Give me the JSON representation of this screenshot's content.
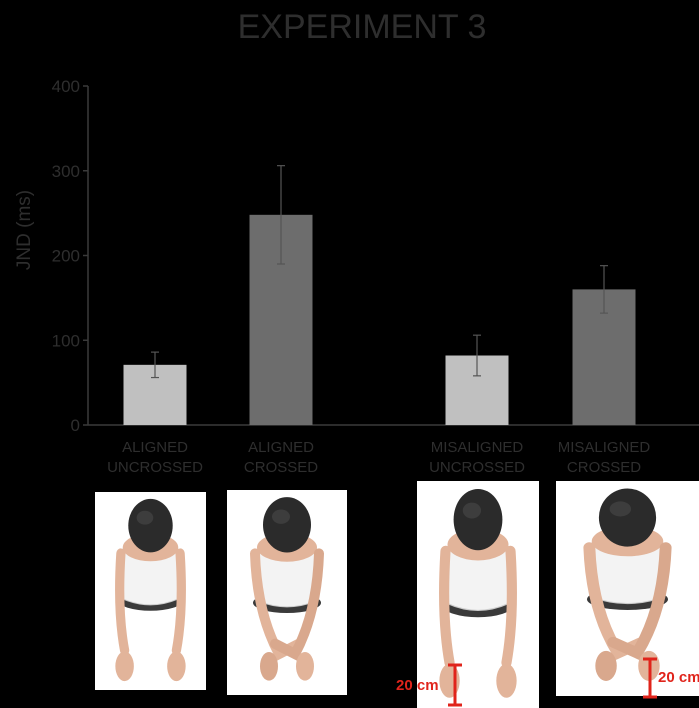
{
  "chart_data": {
    "type": "bar",
    "title": "EXPERIMENT 3",
    "xlabel": "",
    "ylabel": "JND (ms)",
    "ylim": [
      0,
      400
    ],
    "yticks": [
      0,
      100,
      200,
      300,
      400
    ],
    "grid": false,
    "categories": [
      [
        "ALIGNED",
        "UNCROSSED"
      ],
      [
        "ALIGNED",
        "CROSSED"
      ],
      [
        "MISALIGNED",
        "UNCROSSED"
      ],
      [
        "MISALIGNED",
        "CROSSED"
      ]
    ],
    "values": [
      71,
      248,
      82,
      160
    ],
    "errors": [
      15,
      58,
      24,
      28
    ],
    "bar_colors": [
      "#c0c0c0",
      "#6d6d6d",
      "#c0c0c0",
      "#6d6d6d"
    ]
  },
  "colors": {
    "background": "#000000",
    "text": "#2e2e2e",
    "axis": "#3a3a3a",
    "error_bar": "#555555",
    "scale_marker": "#e0241b"
  },
  "photos": [
    {
      "icon": "aligned-uncrossed-posture-image",
      "crossed": false
    },
    {
      "icon": "aligned-crossed-posture-image",
      "crossed": true
    },
    {
      "icon": "misaligned-uncrossed-posture-image",
      "crossed": false
    },
    {
      "icon": "misaligned-crossed-posture-image",
      "crossed": true
    }
  ],
  "scale_markers": [
    "20 cm",
    "20 cm"
  ]
}
